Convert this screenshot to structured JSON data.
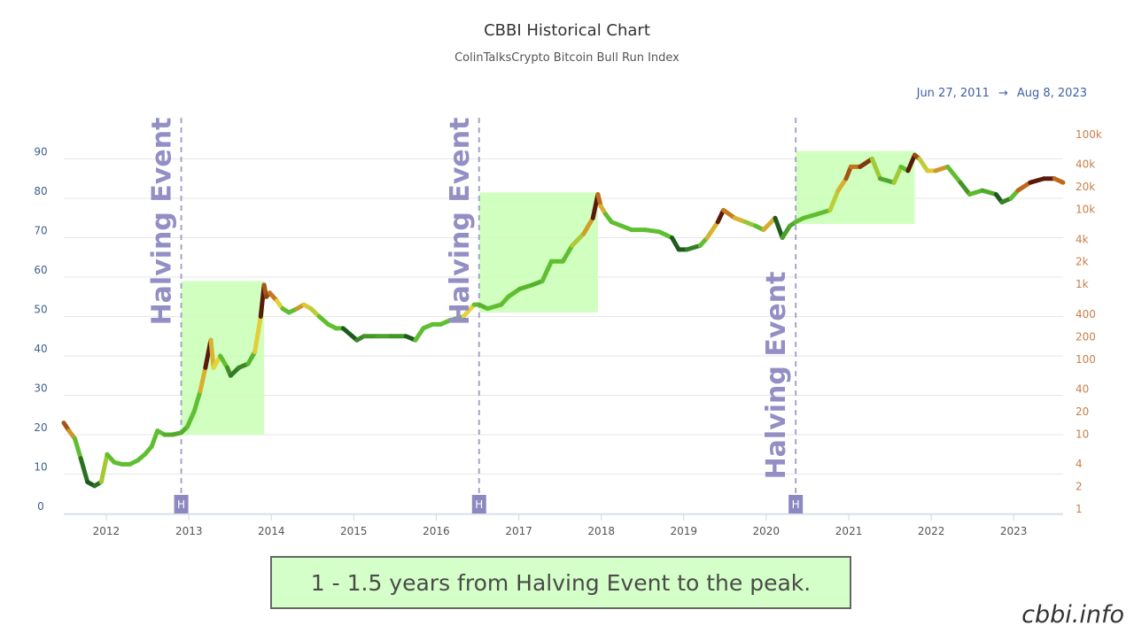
{
  "header": {
    "title": "CBBI Historical Chart",
    "subtitle": "ColinTalksCrypto Bitcoin Bull Run Index",
    "range_start": "Jun 27, 2011",
    "range_arrow": "→",
    "range_end": "Aug 8, 2023"
  },
  "caption": "1 - 1.5 years from Halving Event to the peak.",
  "watermark": "cbbi.info",
  "chart_data": {
    "type": "line",
    "title": "CBBI Historical Chart",
    "subtitle": "ColinTalksCrypto Bitcoin Bull Run Index",
    "x_range": [
      "2011-06-27",
      "2023-08-08"
    ],
    "x_ticks": [
      "2012",
      "2013",
      "2014",
      "2015",
      "2016",
      "2017",
      "2018",
      "2019",
      "2020",
      "2021",
      "2022",
      "2023"
    ],
    "y_left": {
      "ticks": [
        0,
        10,
        20,
        30,
        40,
        50,
        60,
        70,
        80,
        90
      ],
      "ylim": [
        0,
        100
      ]
    },
    "y_right": {
      "scale": "log",
      "ticks": [
        "1",
        "2",
        "4",
        "10",
        "20",
        "40",
        "100",
        "200",
        "400",
        "1k",
        "2k",
        "4k",
        "10k",
        "20k",
        "40k",
        "100k"
      ]
    },
    "grid": true,
    "halvings": [
      {
        "date": "2012-11-28",
        "label": "Halving Event",
        "marker": "H",
        "label_position": "top"
      },
      {
        "date": "2016-07-09",
        "label": "Halving Event",
        "marker": "H",
        "label_position": "top"
      },
      {
        "date": "2020-05-11",
        "label": "Halving Event",
        "marker": "H",
        "label_position": "bottom"
      }
    ],
    "highlight_boxes": [
      {
        "x_start": "2012-11-28",
        "x_end": "2013-11-30",
        "y_low": 20,
        "y_high": 59
      },
      {
        "x_start": "2016-07-09",
        "x_end": "2017-12-17",
        "y_low": 51,
        "y_high": 81.5
      },
      {
        "x_start": "2020-05-11",
        "x_end": "2021-10-20",
        "y_low": 73.5,
        "y_high": 92
      }
    ],
    "color_scale": {
      "low": "#1e5a1e",
      "mid_low": "#5fbf30",
      "mid": "#e3d43a",
      "high": "#c06a1a",
      "top": "#5a1a0a"
    },
    "series": [
      {
        "name": "CBBI",
        "points": [
          [
            "2011-06-27",
            23
          ],
          [
            "2011-07-20",
            21
          ],
          [
            "2011-08-15",
            19
          ],
          [
            "2011-09-10",
            14
          ],
          [
            "2011-10-10",
            8
          ],
          [
            "2011-11-10",
            7
          ],
          [
            "2011-12-10",
            8
          ],
          [
            "2012-01-05",
            15
          ],
          [
            "2012-02-05",
            13
          ],
          [
            "2012-03-10",
            12.5
          ],
          [
            "2012-04-15",
            12.5
          ],
          [
            "2012-05-20",
            13.5
          ],
          [
            "2012-06-20",
            15
          ],
          [
            "2012-07-20",
            17
          ],
          [
            "2012-08-15",
            21
          ],
          [
            "2012-09-15",
            20
          ],
          [
            "2012-10-20",
            20
          ],
          [
            "2012-11-28",
            20.5
          ],
          [
            "2012-12-25",
            22
          ],
          [
            "2013-01-25",
            26
          ],
          [
            "2013-02-20",
            31
          ],
          [
            "2013-03-15",
            37
          ],
          [
            "2013-04-08",
            44
          ],
          [
            "2013-04-20",
            37
          ],
          [
            "2013-05-20",
            40
          ],
          [
            "2013-06-20",
            37
          ],
          [
            "2013-07-05",
            35
          ],
          [
            "2013-08-10",
            37
          ],
          [
            "2013-09-20",
            38
          ],
          [
            "2013-10-20",
            41
          ],
          [
            "2013-11-15",
            50
          ],
          [
            "2013-11-30",
            58
          ],
          [
            "2013-12-10",
            55
          ],
          [
            "2013-12-25",
            56
          ],
          [
            "2014-01-25",
            54
          ],
          [
            "2014-02-20",
            52
          ],
          [
            "2014-03-20",
            51
          ],
          [
            "2014-04-25",
            52
          ],
          [
            "2014-05-25",
            53
          ],
          [
            "2014-06-25",
            52
          ],
          [
            "2014-08-01",
            50
          ],
          [
            "2014-09-10",
            48
          ],
          [
            "2014-10-15",
            47
          ],
          [
            "2014-11-15",
            47
          ],
          [
            "2015-01-15",
            44
          ],
          [
            "2015-02-15",
            45
          ],
          [
            "2015-04-15",
            45
          ],
          [
            "2015-06-15",
            45
          ],
          [
            "2015-08-20",
            45
          ],
          [
            "2015-10-01",
            44
          ],
          [
            "2015-11-05",
            47
          ],
          [
            "2015-12-15",
            48
          ],
          [
            "2016-01-20",
            48
          ],
          [
            "2016-03-01",
            49
          ],
          [
            "2016-05-01",
            50
          ],
          [
            "2016-06-17",
            53
          ],
          [
            "2016-07-09",
            53
          ],
          [
            "2016-08-15",
            52
          ],
          [
            "2016-10-15",
            53
          ],
          [
            "2016-11-15",
            55
          ],
          [
            "2017-01-05",
            57
          ],
          [
            "2017-03-01",
            58
          ],
          [
            "2017-04-15",
            59
          ],
          [
            "2017-05-25",
            64
          ],
          [
            "2017-07-15",
            64
          ],
          [
            "2017-08-25",
            68
          ],
          [
            "2017-10-15",
            71
          ],
          [
            "2017-11-25",
            75
          ],
          [
            "2017-12-17",
            81
          ],
          [
            "2017-12-30",
            78
          ],
          [
            "2018-01-20",
            76
          ],
          [
            "2018-02-15",
            74
          ],
          [
            "2018-04-01",
            73
          ],
          [
            "2018-05-15",
            72
          ],
          [
            "2018-07-15",
            72
          ],
          [
            "2018-09-15",
            71.5
          ],
          [
            "2018-11-10",
            70
          ],
          [
            "2018-12-10",
            67
          ],
          [
            "2019-01-15",
            67
          ],
          [
            "2019-03-15",
            68
          ],
          [
            "2019-04-15",
            70
          ],
          [
            "2019-06-01",
            74
          ],
          [
            "2019-06-26",
            77
          ],
          [
            "2019-08-15",
            75
          ],
          [
            "2019-10-01",
            74
          ],
          [
            "2019-11-15",
            73
          ],
          [
            "2019-12-20",
            72
          ],
          [
            "2020-02-10",
            75
          ],
          [
            "2020-03-13",
            70
          ],
          [
            "2020-04-15",
            73
          ],
          [
            "2020-05-11",
            74
          ],
          [
            "2020-06-15",
            75
          ],
          [
            "2020-08-15",
            76
          ],
          [
            "2020-10-10",
            77
          ],
          [
            "2020-11-15",
            82
          ],
          [
            "2020-12-20",
            85
          ],
          [
            "2021-01-10",
            88
          ],
          [
            "2021-02-20",
            88
          ],
          [
            "2021-04-14",
            90
          ],
          [
            "2021-05-20",
            85
          ],
          [
            "2021-07-20",
            84
          ],
          [
            "2021-08-20",
            88
          ],
          [
            "2021-09-20",
            87
          ],
          [
            "2021-10-20",
            91
          ],
          [
            "2021-11-10",
            90
          ],
          [
            "2021-12-15",
            87
          ],
          [
            "2022-01-20",
            87
          ],
          [
            "2022-03-15",
            88
          ],
          [
            "2022-05-10",
            84
          ],
          [
            "2022-06-20",
            81
          ],
          [
            "2022-08-15",
            82
          ],
          [
            "2022-10-15",
            81
          ],
          [
            "2022-11-10",
            79
          ],
          [
            "2022-12-20",
            80
          ],
          [
            "2023-01-20",
            82
          ],
          [
            "2023-03-15",
            84
          ],
          [
            "2023-05-15",
            85
          ],
          [
            "2023-07-01",
            85
          ],
          [
            "2023-08-08",
            84
          ]
        ]
      }
    ]
  }
}
